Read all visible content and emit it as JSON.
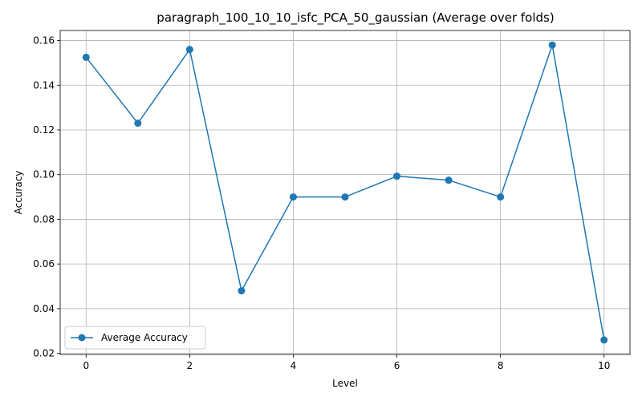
{
  "chart_data": {
    "type": "line",
    "title": "paragraph_100_10_10_isfc_PCA_50_gaussian (Average over folds)",
    "xlabel": "Level",
    "ylabel": "Accuracy",
    "xlim": [
      -0.5,
      10.5
    ],
    "ylim": [
      0.0195,
      0.1645
    ],
    "xticks": [
      0,
      2,
      4,
      6,
      8,
      10
    ],
    "xtick_labels": [
      "0",
      "2",
      "4",
      "6",
      "8",
      "10"
    ],
    "yticks": [
      0.02,
      0.04,
      0.06,
      0.08,
      0.1,
      0.12,
      0.14,
      0.16
    ],
    "ytick_labels": [
      "0.02",
      "0.04",
      "0.06",
      "0.08",
      "0.10",
      "0.12",
      "0.14",
      "0.16"
    ],
    "grid": true,
    "legend_position": "lower-left",
    "series": [
      {
        "name": "Average Accuracy",
        "color": "#1f77b4",
        "marker": "circle",
        "x": [
          0,
          1,
          2,
          3,
          4,
          5,
          6,
          7,
          8,
          9,
          10
        ],
        "values": [
          0.1525,
          0.123,
          0.156,
          0.048,
          0.09,
          0.09,
          0.0993,
          0.0975,
          0.09,
          0.158,
          0.026
        ]
      }
    ]
  }
}
